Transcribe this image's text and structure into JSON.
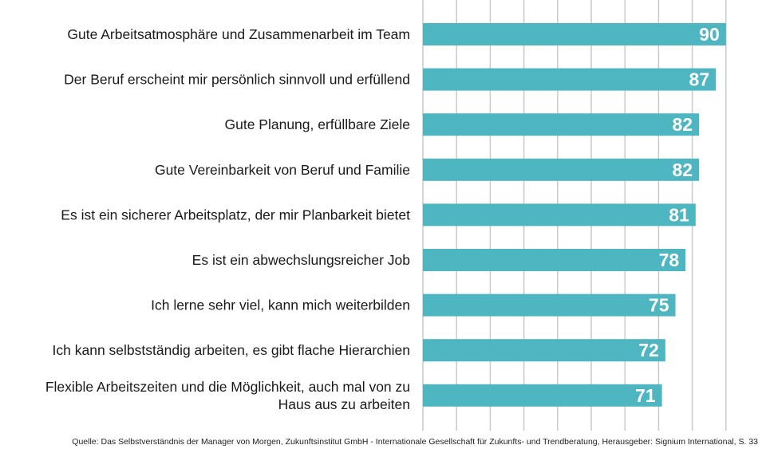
{
  "chart_data": {
    "type": "bar",
    "orientation": "horizontal",
    "categories": [
      "Gute Arbeitsatmosphäre und Zusammenarbeit im Team",
      "Der Beruf erscheint mir persönlich sinnvoll und erfüllend",
      "Gute Planung, erfüllbare Ziele",
      "Gute Vereinbarkeit von Beruf und Familie",
      "Es ist ein sicherer Arbeitsplatz, der mir Planbarkeit bietet",
      "Es ist ein abwechslungsreicher Job",
      "Ich lerne sehr viel, kann mich weiterbilden",
      "Ich kann selbstständig arbeiten, es gibt flache Hierarchien",
      [
        "Flexible Arbeitszeiten und die Möglichkeit, auch mal von zu",
        "Haus aus zu arbeiten"
      ]
    ],
    "values": [
      90,
      87,
      82,
      82,
      81,
      78,
      75,
      72,
      71
    ],
    "xlim": [
      0,
      100
    ],
    "grid": true,
    "bar_color": "#4db6c0",
    "grid_color": "#c9c9c9",
    "value_label_color": "#ffffff"
  },
  "source": "Quelle: Das Selbstverständnis der Manager von Morgen, Zukunftsinstitut GmbH - Internationale Gesellschaft für Zukunfts- und Trendberatung, Herausgeber: Signium International, S. 33"
}
